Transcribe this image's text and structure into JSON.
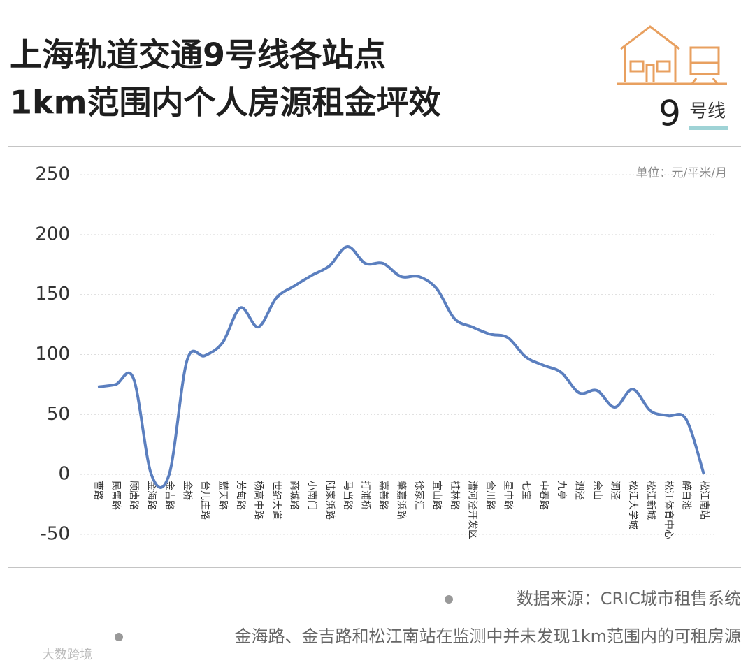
{
  "chart_data": {
    "type": "line",
    "title": "上海轨道交通9号线各站点",
    "subtitle": "1km范围内个人房源租金坪效",
    "line_number": "9",
    "line_label": "号线",
    "unit": "单位：元/平米/月",
    "categories": [
      "曹路",
      "民雷路",
      "顾唐路",
      "金海路",
      "金吉路",
      "金桥",
      "台儿庄路",
      "蓝天路",
      "芳甸路",
      "杨高中路",
      "世纪大道",
      "商城路",
      "小南门",
      "陆家浜路",
      "马当路",
      "打浦桥",
      "嘉善路",
      "肇嘉浜路",
      "徐家汇",
      "宜山路",
      "桂林路",
      "漕河泾开发区",
      "合川路",
      "星中路",
      "七宝",
      "中春路",
      "九亭",
      "泗泾",
      "佘山",
      "洞泾",
      "松江大学城",
      "松江新城",
      "松江体育中心",
      "醉白池",
      "松江南站"
    ],
    "series": [
      {
        "name": "租金坪效",
        "color": "#5b7fbf",
        "values": [
          73,
          75,
          80,
          0,
          0,
          95,
          99,
          110,
          139,
          123,
          147,
          157,
          166,
          174,
          190,
          176,
          176,
          165,
          165,
          155,
          130,
          123,
          117,
          114,
          98,
          91,
          85,
          68,
          70,
          56,
          71,
          53,
          49,
          46,
          0
        ]
      }
    ],
    "ylim": [
      -50,
      250
    ],
    "yticks": [
      -50,
      0,
      50,
      100,
      150,
      200,
      250
    ],
    "grid": true,
    "notes": [
      "数据来源：CRIC城市租售系统",
      "金海路、金吉路和松江南站在监测中并未发现1km范围内的可租房源"
    ],
    "watermark": "大数跨境"
  }
}
